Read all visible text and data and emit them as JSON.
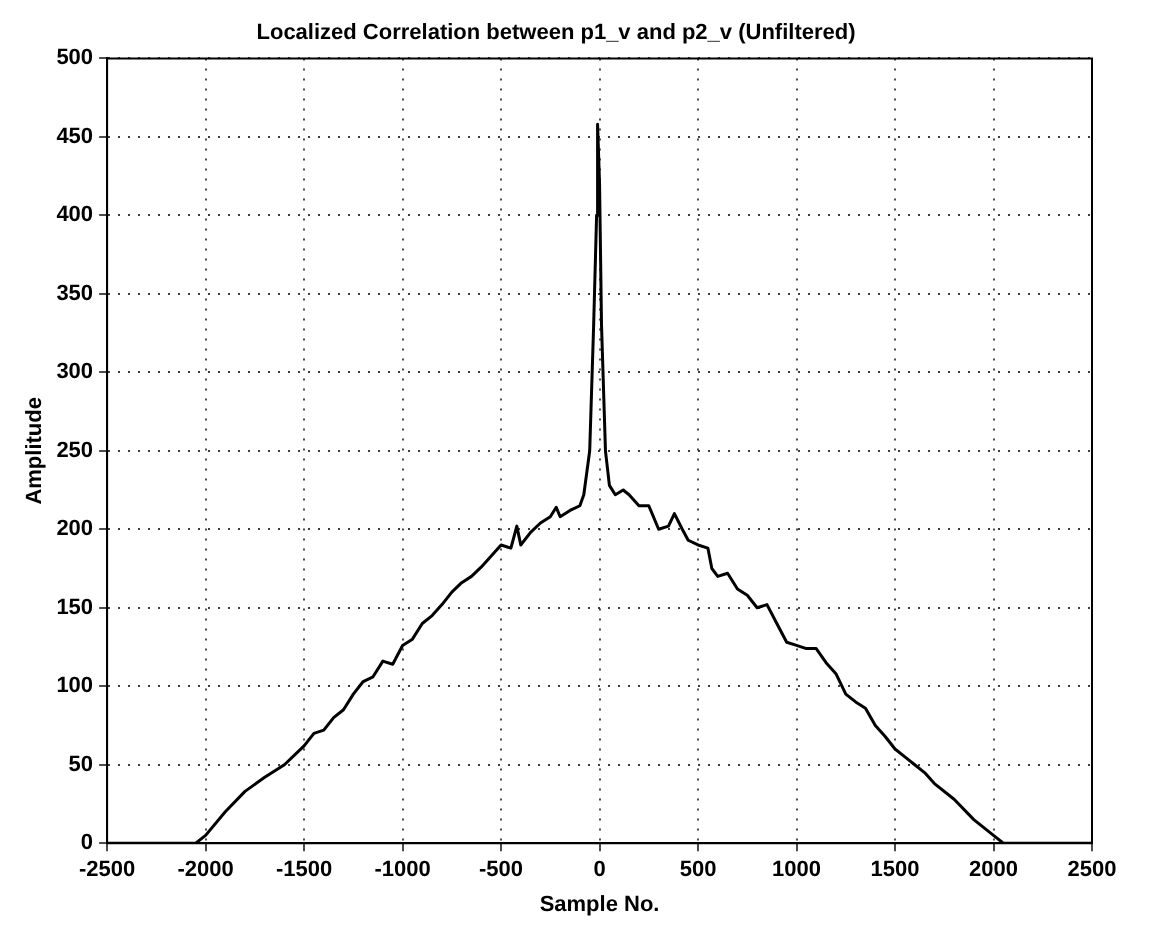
{
  "chart_data": {
    "type": "line",
    "title": "Localized Correlation between p1_v and p2_v (Unfiltered)",
    "xlabel": "Sample No.",
    "ylabel": "Amplitude",
    "xlim": [
      -2500,
      2500
    ],
    "xticks": [
      -2500,
      -2000,
      -1500,
      -1000,
      -500,
      0,
      500,
      1000,
      1500,
      2000,
      2500
    ],
    "ylim": [
      0,
      500
    ],
    "yticks": [
      0,
      50,
      100,
      150,
      200,
      250,
      300,
      350,
      400,
      450,
      500
    ],
    "grid": true,
    "marker": "none",
    "line_style": "solid",
    "series": [
      {
        "color": "#000000",
        "x": [
          -2500,
          -2050,
          -2000,
          -1900,
          -1800,
          -1700,
          -1600,
          -1500,
          -1450,
          -1400,
          -1350,
          -1300,
          -1250,
          -1200,
          -1150,
          -1100,
          -1050,
          -1000,
          -950,
          -900,
          -850,
          -800,
          -750,
          -700,
          -650,
          -600,
          -550,
          -500,
          -450,
          -420,
          -400,
          -350,
          -300,
          -250,
          -220,
          -200,
          -150,
          -100,
          -80,
          -50,
          -30,
          -15,
          -10,
          0,
          10,
          30,
          50,
          80,
          120,
          150,
          200,
          250,
          300,
          350,
          380,
          420,
          450,
          500,
          550,
          570,
          600,
          650,
          700,
          750,
          800,
          850,
          900,
          950,
          1000,
          1050,
          1100,
          1150,
          1200,
          1250,
          1300,
          1350,
          1400,
          1450,
          1500,
          1550,
          1600,
          1650,
          1700,
          1800,
          1900,
          2000,
          2050,
          2500
        ],
        "values": [
          0,
          0,
          5,
          20,
          33,
          42,
          50,
          62,
          70,
          72,
          80,
          85,
          95,
          103,
          106,
          116,
          114,
          126,
          130,
          140,
          145,
          152,
          160,
          166,
          170,
          176,
          183,
          190,
          188,
          202,
          190,
          198,
          204,
          208,
          214,
          208,
          212,
          215,
          222,
          250,
          330,
          400,
          458,
          420,
          330,
          250,
          228,
          222,
          225,
          222,
          215,
          215,
          200,
          202,
          210,
          200,
          193,
          190,
          188,
          175,
          170,
          172,
          162,
          158,
          150,
          152,
          140,
          128,
          126,
          124,
          124,
          115,
          108,
          95,
          90,
          86,
          75,
          68,
          60,
          55,
          50,
          45,
          38,
          28,
          15,
          5,
          0,
          0
        ]
      }
    ]
  }
}
